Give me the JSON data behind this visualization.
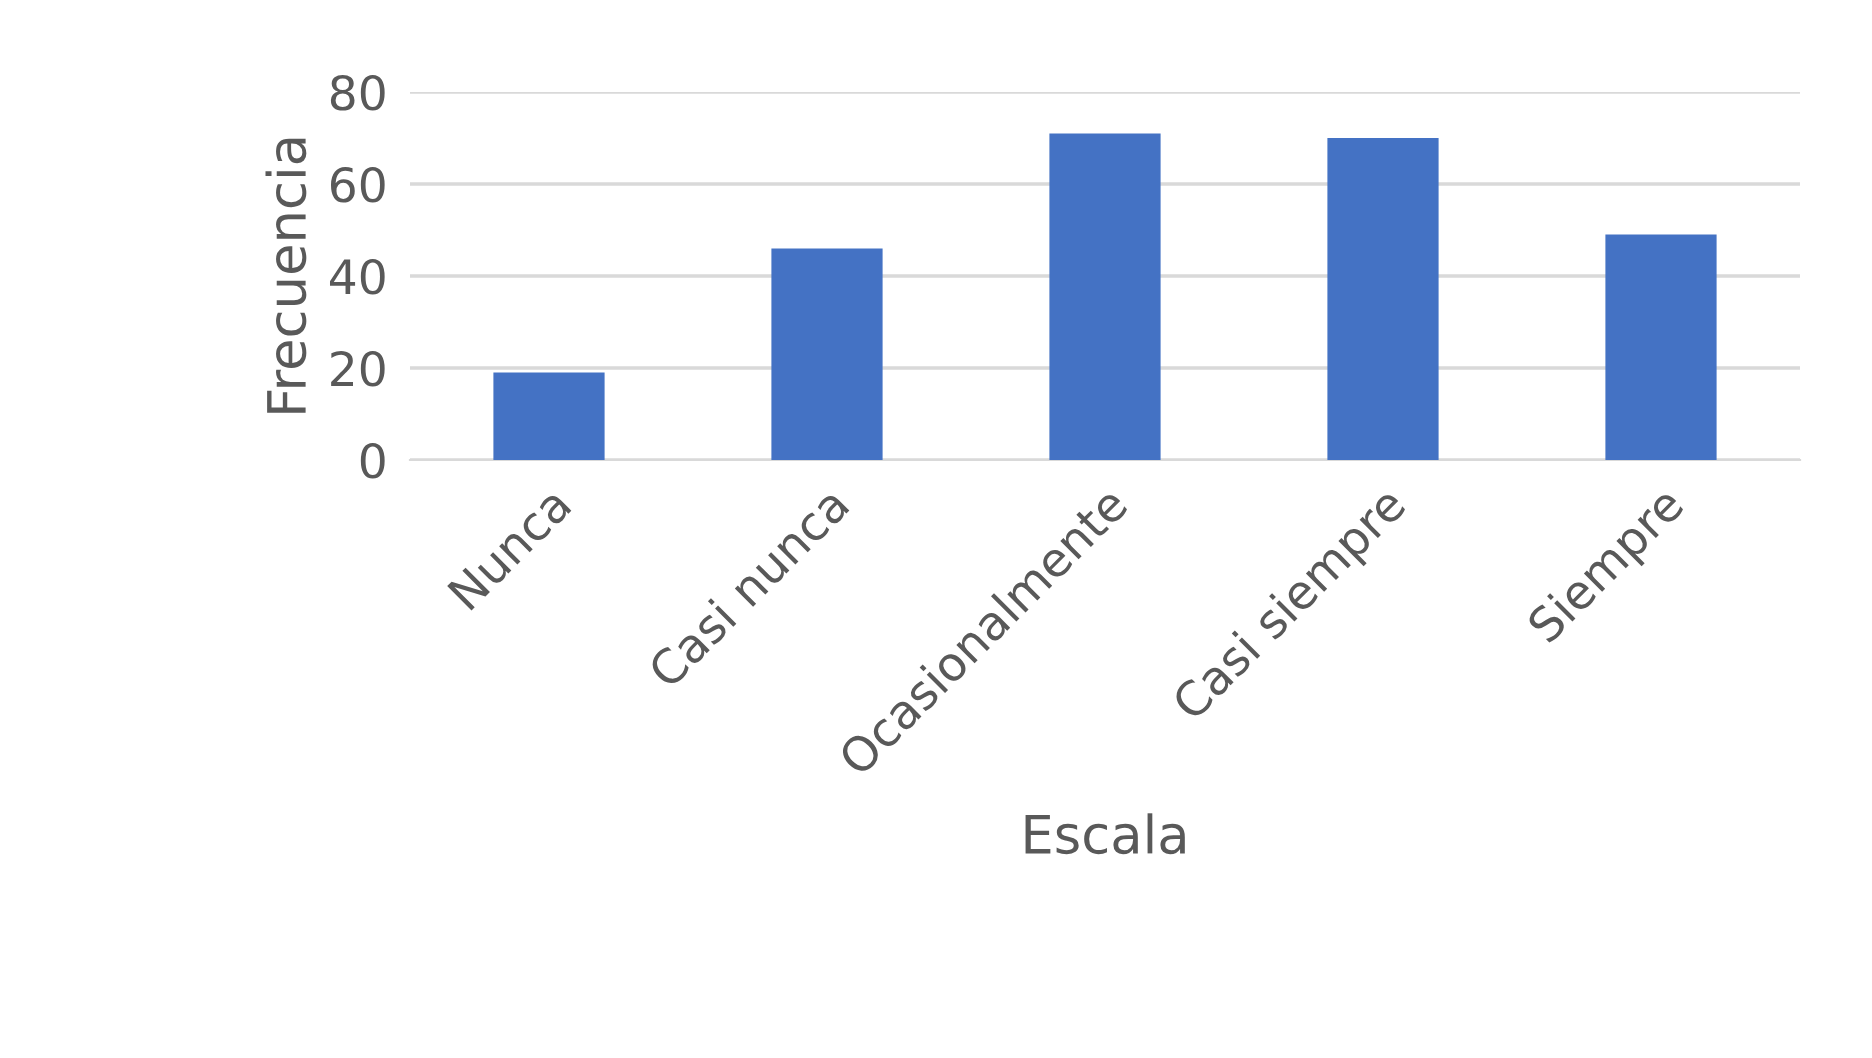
{
  "chart_data": {
    "type": "bar",
    "xlabel": "Escala",
    "ylabel": "Frecuencia",
    "categories": [
      "Nunca",
      "Casi nunca",
      "Ocasionalmente",
      "Casi siempre",
      "Siempre"
    ],
    "values": [
      19,
      46,
      71,
      70,
      49
    ],
    "color": "#4472c4",
    "ylim": [
      0,
      80
    ],
    "yticks": [
      0,
      20,
      40,
      60,
      80
    ],
    "grid": "y",
    "legend": false
  }
}
